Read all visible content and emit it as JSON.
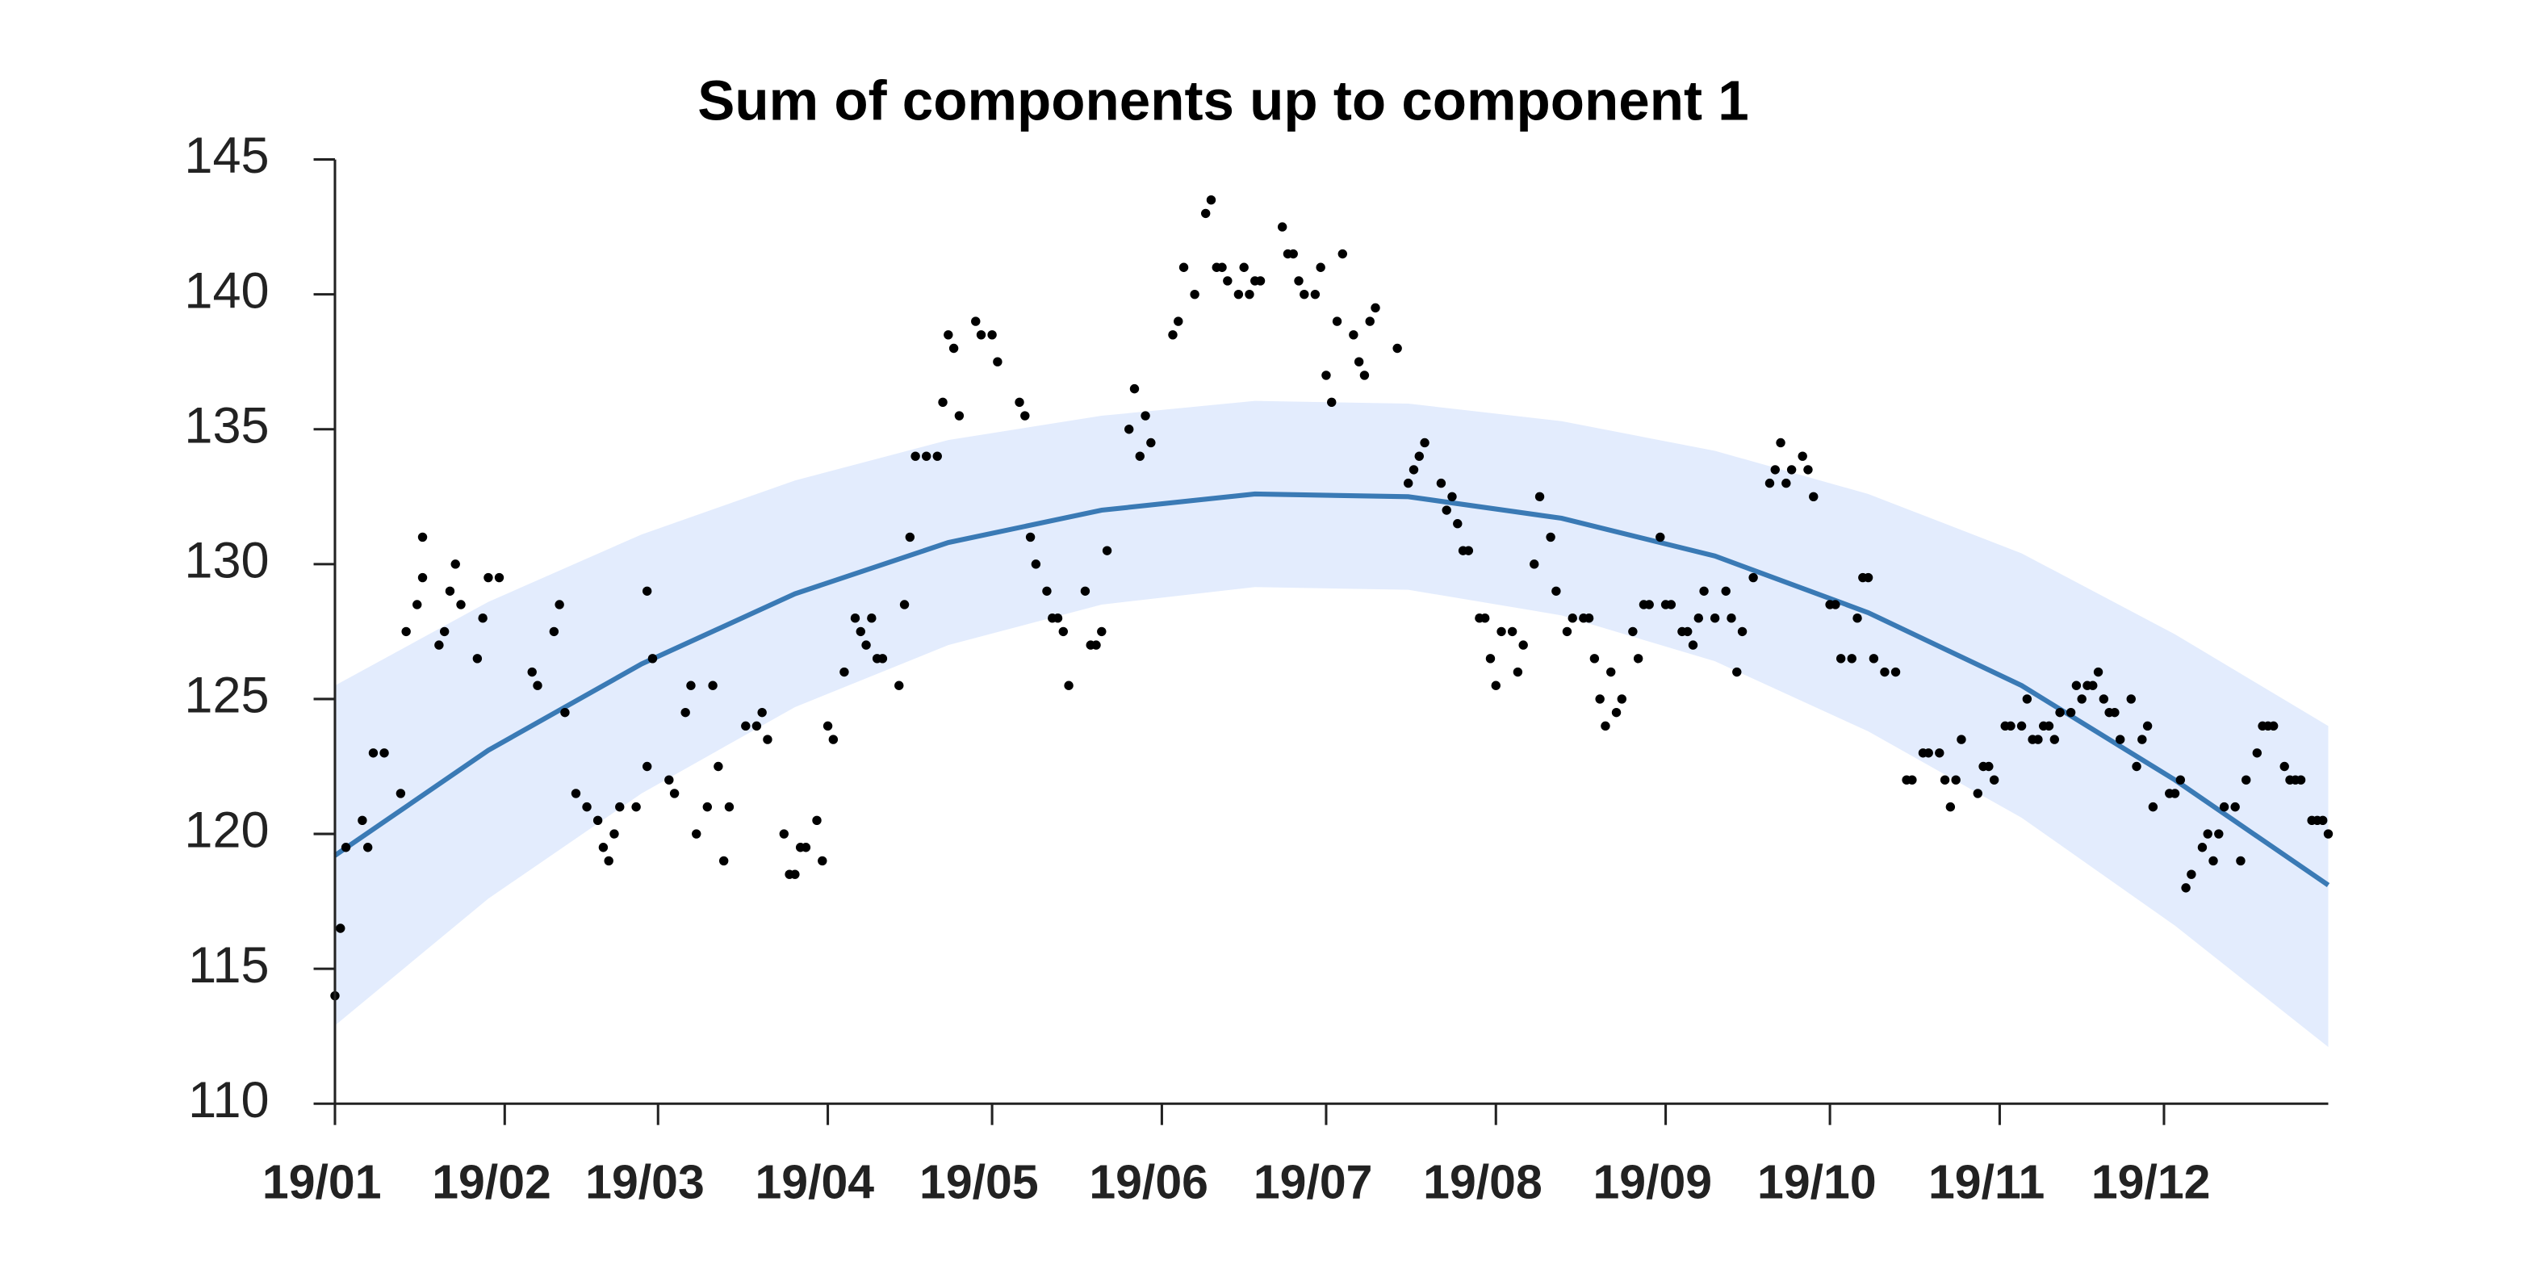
{
  "chart_data": {
    "type": "scatter",
    "title": "Sum of components up to component 1",
    "xlim": [
      0,
      364
    ],
    "ylim": [
      110,
      145
    ],
    "yticks": [
      110,
      115,
      120,
      125,
      130,
      135,
      140,
      145
    ],
    "xticks": [
      {
        "value": 0,
        "label": "19/01"
      },
      {
        "value": 31,
        "label": "19/02"
      },
      {
        "value": 59,
        "label": "19/03"
      },
      {
        "value": 90,
        "label": "19/04"
      },
      {
        "value": 120,
        "label": "19/05"
      },
      {
        "value": 151,
        "label": "19/06"
      },
      {
        "value": 181,
        "label": "19/07"
      },
      {
        "value": 212,
        "label": "19/08"
      },
      {
        "value": 243,
        "label": "19/09"
      },
      {
        "value": 273,
        "label": "19/10"
      },
      {
        "value": 304,
        "label": "19/11"
      },
      {
        "value": 334,
        "label": "19/12"
      }
    ],
    "series": [
      {
        "type": "band",
        "color": "#e3ecfd",
        "x": [
          0,
          28,
          56,
          84,
          112,
          140,
          168,
          196,
          224,
          252,
          280,
          308,
          336,
          364
        ],
        "upper": [
          125.5,
          128.6,
          131.1,
          133.1,
          134.6,
          135.5,
          136.05,
          135.95,
          135.3,
          134.2,
          132.6,
          130.4,
          127.4,
          124.0
        ],
        "lower": [
          112.9,
          117.6,
          121.5,
          124.7,
          127.0,
          128.5,
          129.15,
          129.05,
          128.1,
          126.4,
          123.8,
          120.6,
          116.6,
          112.1
        ]
      },
      {
        "type": "line",
        "color": "#3a7ab5",
        "x": [
          0,
          28,
          56,
          84,
          112,
          140,
          168,
          196,
          224,
          252,
          280,
          308,
          336,
          364
        ],
        "values": [
          119.2,
          123.1,
          126.3,
          128.9,
          130.8,
          132.0,
          132.6,
          132.5,
          131.7,
          130.3,
          128.2,
          125.5,
          122.0,
          118.1
        ]
      },
      {
        "type": "scatter",
        "color": "#000000",
        "x": [
          0,
          1,
          2,
          5,
          6,
          7,
          9,
          12,
          13,
          15,
          16,
          16,
          19,
          20,
          21,
          22,
          23,
          26,
          27,
          28,
          30,
          36,
          37,
          40,
          41,
          42,
          44,
          46,
          48,
          49,
          50,
          51,
          52,
          55,
          57,
          57,
          58,
          61,
          62,
          64,
          65,
          66,
          68,
          69,
          70,
          71,
          72,
          75,
          77,
          78,
          79,
          82,
          83,
          84,
          85,
          86,
          88,
          89,
          90,
          91,
          93,
          95,
          96,
          97,
          98,
          99,
          100,
          103,
          104,
          105,
          106,
          108,
          110,
          111,
          112,
          113,
          114,
          117,
          118,
          120,
          121,
          125,
          126,
          127,
          128,
          130,
          131,
          132,
          133,
          134,
          137,
          138,
          139,
          140,
          141,
          145,
          146,
          147,
          148,
          149,
          153,
          154,
          155,
          157,
          159,
          160,
          161,
          162,
          163,
          165,
          166,
          167,
          168,
          169,
          173,
          174,
          175,
          176,
          177,
          179,
          180,
          181,
          182,
          183,
          184,
          186,
          187,
          188,
          189,
          190,
          194,
          196,
          197,
          198,
          199,
          202,
          203,
          204,
          205,
          206,
          207,
          209,
          210,
          211,
          212,
          213,
          215,
          216,
          217,
          219,
          220,
          222,
          223,
          225,
          226,
          228,
          229,
          230,
          231,
          232,
          233,
          234,
          235,
          237,
          238,
          239,
          240,
          242,
          243,
          244,
          246,
          247,
          248,
          249,
          250,
          252,
          254,
          255,
          256,
          257,
          259,
          262,
          263,
          264,
          265,
          266,
          268,
          269,
          270,
          273,
          274,
          275,
          277,
          278,
          279,
          280,
          281,
          283,
          285,
          287,
          288,
          290,
          291,
          293,
          294,
          295,
          296,
          297,
          300,
          301,
          302,
          303,
          305,
          306,
          308,
          309,
          310,
          311,
          312,
          313,
          314,
          315,
          317,
          318,
          319,
          320,
          321,
          322,
          323,
          324,
          325,
          326,
          328,
          329,
          330,
          331,
          332,
          335,
          336,
          337,
          338,
          339,
          341,
          342,
          343,
          344,
          345,
          347,
          348,
          349,
          351,
          352,
          353,
          354,
          356,
          357,
          358,
          359,
          361,
          362,
          363,
          364
        ],
        "values": [
          114,
          116.5,
          119.5,
          120.5,
          119.5,
          123,
          123,
          121.5,
          127.5,
          128.5,
          129.5,
          131,
          127,
          127.5,
          129,
          130,
          128.5,
          126.5,
          128,
          129.5,
          129.5,
          126,
          125.5,
          127.5,
          128.5,
          124.5,
          121.5,
          121,
          120.5,
          119.5,
          119,
          120,
          121,
          121,
          122.5,
          129,
          126.5,
          122,
          121.5,
          124.5,
          125.5,
          120,
          121,
          125.5,
          122.5,
          119,
          121,
          124,
          124,
          124.5,
          123.5,
          120,
          118.5,
          118.5,
          119.5,
          119.5,
          120.5,
          119,
          124,
          123.5,
          126,
          128,
          127.5,
          127,
          128,
          126.5,
          126.5,
          125.5,
          128.5,
          131,
          134,
          134,
          134,
          136,
          138.5,
          138,
          135.5,
          139,
          138.5,
          138.5,
          137.5,
          136,
          135.5,
          131,
          130,
          129,
          128,
          128,
          127.5,
          125.5,
          129,
          127,
          127,
          127.5,
          130.5,
          135,
          136.5,
          134,
          135.5,
          134.5,
          138.5,
          139,
          141,
          140,
          143,
          143.5,
          141,
          141,
          140.5,
          140,
          141,
          140,
          140.5,
          140.5,
          142.5,
          141.5,
          141.5,
          140.5,
          140,
          140,
          141,
          137,
          136,
          139,
          141.5,
          138.5,
          137.5,
          137,
          139,
          139.5,
          138,
          133,
          133.5,
          134,
          134.5,
          133,
          132,
          132.5,
          131.5,
          130.5,
          130.5,
          128,
          128,
          126.5,
          125.5,
          127.5,
          127.5,
          126,
          127,
          130,
          132.5,
          131,
          129,
          127.5,
          128,
          128,
          128,
          126.5,
          125,
          124,
          126,
          124.5,
          125,
          127.5,
          126.5,
          128.5,
          128.5,
          131,
          128.5,
          128.5,
          127.5,
          127.5,
          127,
          128,
          129,
          128,
          129,
          128,
          126,
          127.5,
          129.5,
          133,
          133.5,
          134.5,
          133,
          133.5,
          134,
          133.5,
          132.5,
          128.5,
          128.5,
          126.5,
          126.5,
          128,
          129.5,
          129.5,
          126.5,
          126,
          126,
          122,
          122,
          123,
          123,
          123,
          122,
          121,
          122,
          123.5,
          121.5,
          122.5,
          122.5,
          122,
          124,
          124,
          124,
          125,
          123.5,
          123.5,
          124,
          124,
          123.5,
          124.5,
          124.5,
          125.5,
          125,
          125.5,
          125.5,
          126,
          125,
          124.5,
          124.5,
          123.5,
          125,
          122.5,
          123.5,
          124,
          121,
          121.5,
          121.5,
          122,
          118,
          118.5,
          119.5,
          120,
          119,
          120,
          121,
          121,
          119,
          122,
          123,
          124,
          124,
          124,
          122.5,
          122,
          122,
          122,
          120.5,
          120.5,
          120.5,
          120
        ]
      }
    ]
  }
}
